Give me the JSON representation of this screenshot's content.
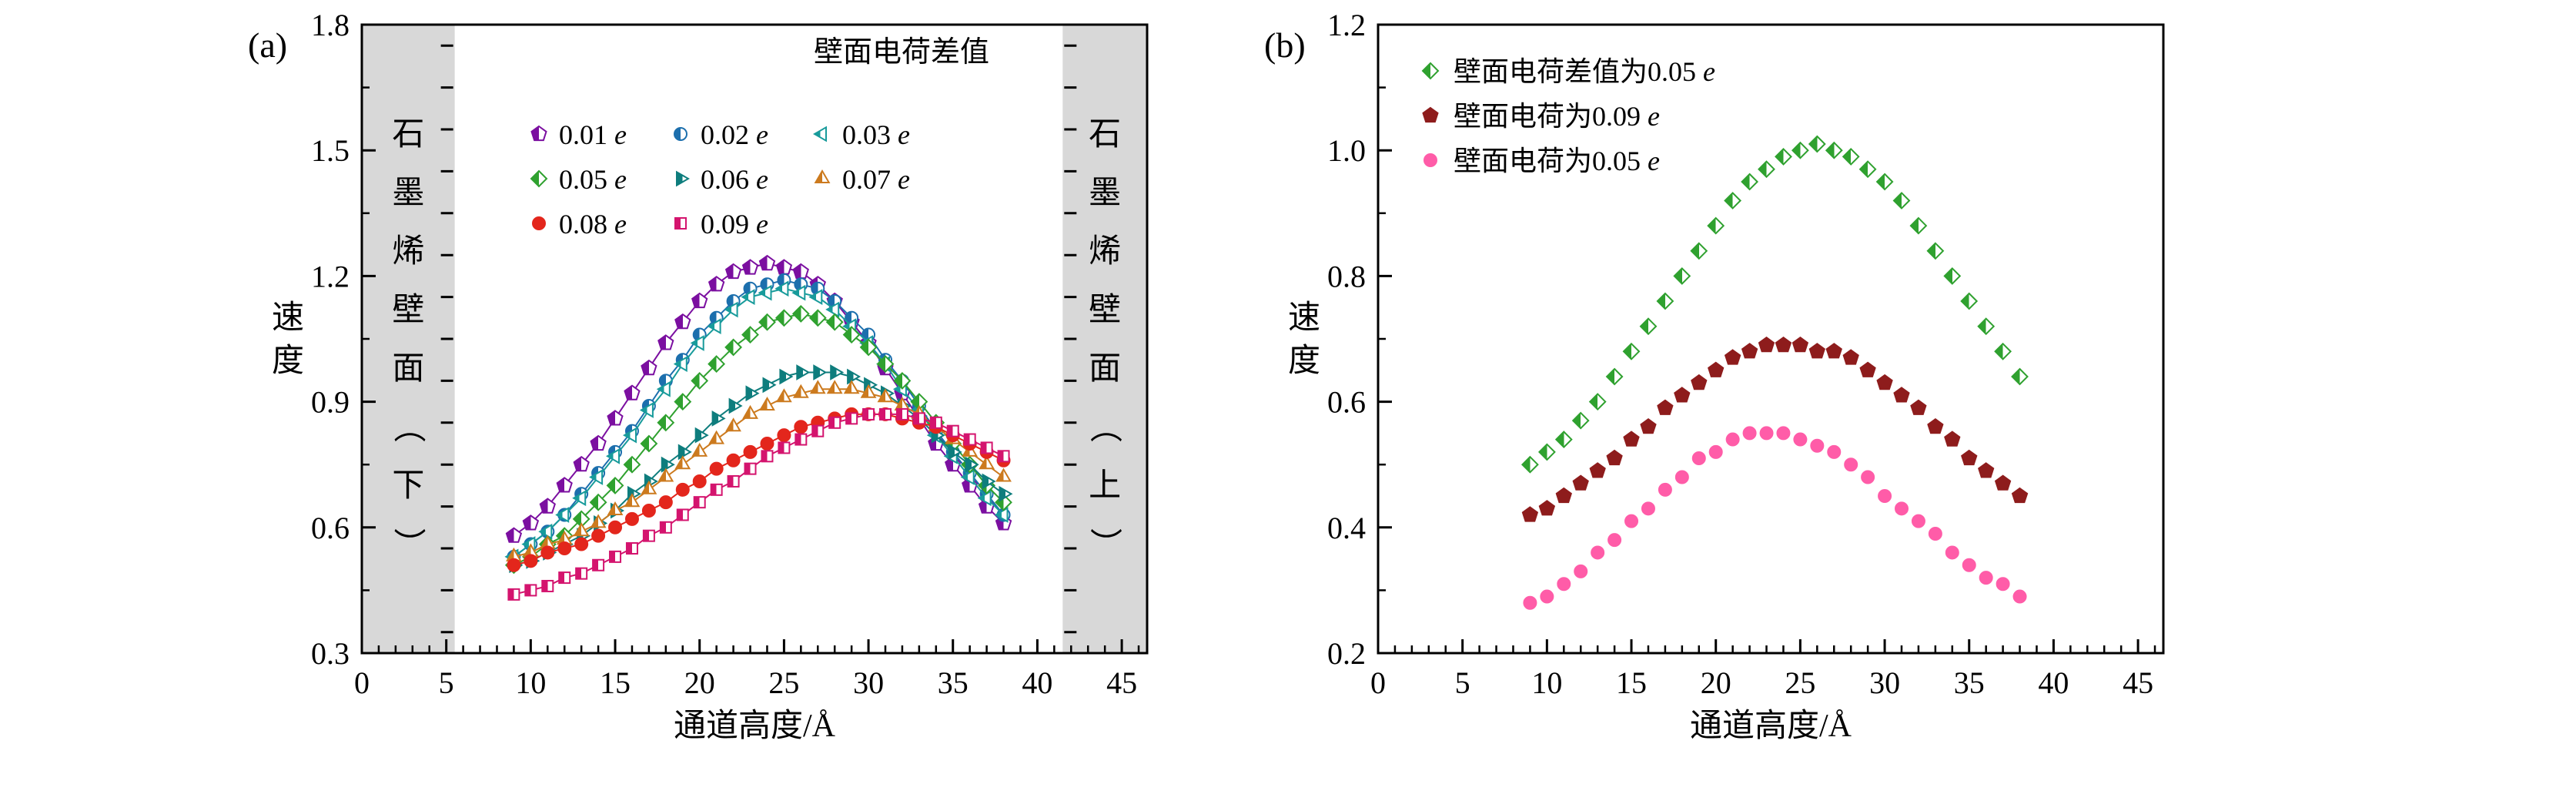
{
  "style": {
    "background": "#ffffff",
    "axis_color": "#000000",
    "band_fill": "#d8d8d8"
  },
  "chart_data": [
    {
      "panel": "(a)",
      "type": "scatter",
      "xlabel": "通道高度/Å",
      "ylabel": "速度",
      "xlim": [
        0,
        46.5
      ],
      "ylim": [
        0.3,
        1.8
      ],
      "x_ticks": [
        0,
        5,
        10,
        15,
        20,
        25,
        30,
        35,
        40,
        45
      ],
      "y_ticks": [
        0.3,
        0.6,
        0.9,
        1.2,
        1.5,
        1.8
      ],
      "grid": false,
      "legend_title": "壁面电荷差值",
      "legend_position": "top-center-grid",
      "connect_points": true,
      "wall_bands": [
        {
          "label": "石墨烯壁面（下）",
          "x_from": 0,
          "x_to": 5.5
        },
        {
          "label": "石墨烯壁面（上）",
          "x_from": 41.5,
          "x_to": 46.5
        }
      ],
      "x": [
        9,
        10,
        11,
        12,
        13,
        14,
        15,
        16,
        17,
        18,
        19,
        20,
        21,
        22,
        23,
        24,
        25,
        26,
        27,
        28,
        29,
        30,
        31,
        32,
        33,
        34,
        35,
        36,
        37,
        38
      ],
      "series": [
        {
          "name": "0.01 e",
          "marker": "pentagon",
          "color": "#7b0fa0",
          "half_filled": true,
          "values": [
            0.58,
            0.61,
            0.65,
            0.7,
            0.75,
            0.8,
            0.86,
            0.92,
            0.98,
            1.04,
            1.09,
            1.14,
            1.18,
            1.21,
            1.22,
            1.23,
            1.22,
            1.21,
            1.18,
            1.14,
            1.09,
            1.04,
            0.98,
            0.92,
            0.86,
            0.8,
            0.75,
            0.7,
            0.65,
            0.61
          ]
        },
        {
          "name": "0.02 e",
          "marker": "circle",
          "color": "#1c6fad",
          "half_filled": true,
          "values": [
            0.53,
            0.56,
            0.59,
            0.63,
            0.68,
            0.73,
            0.78,
            0.83,
            0.89,
            0.95,
            1.0,
            1.06,
            1.1,
            1.14,
            1.17,
            1.18,
            1.19,
            1.18,
            1.17,
            1.14,
            1.1,
            1.06,
            1.0,
            0.95,
            0.89,
            0.83,
            0.78,
            0.73,
            0.68,
            0.63
          ]
        },
        {
          "name": "0.03 e",
          "marker": "triangle-left",
          "color": "#189b9b",
          "half_filled": true,
          "values": [
            0.53,
            0.56,
            0.59,
            0.63,
            0.67,
            0.72,
            0.77,
            0.82,
            0.88,
            0.93,
            0.99,
            1.04,
            1.08,
            1.12,
            1.15,
            1.16,
            1.17,
            1.16,
            1.15,
            1.12,
            1.08,
            1.04,
            0.99,
            0.93,
            0.88,
            0.82,
            0.77,
            0.72,
            0.67,
            0.63
          ]
        },
        {
          "name": "0.05 e",
          "marker": "diamond",
          "color": "#2fa12f",
          "half_filled": true,
          "values": [
            0.51,
            0.53,
            0.56,
            0.58,
            0.62,
            0.66,
            0.7,
            0.75,
            0.8,
            0.85,
            0.9,
            0.95,
            0.99,
            1.03,
            1.06,
            1.09,
            1.1,
            1.11,
            1.1,
            1.09,
            1.06,
            1.03,
            0.99,
            0.95,
            0.9,
            0.85,
            0.8,
            0.75,
            0.7,
            0.66
          ]
        },
        {
          "name": "0.06 e",
          "marker": "triangle-right",
          "color": "#0e7d7d",
          "half_filled": true,
          "values": [
            0.51,
            0.52,
            0.54,
            0.56,
            0.58,
            0.61,
            0.64,
            0.68,
            0.71,
            0.75,
            0.78,
            0.82,
            0.86,
            0.89,
            0.92,
            0.94,
            0.96,
            0.97,
            0.97,
            0.97,
            0.96,
            0.94,
            0.92,
            0.89,
            0.86,
            0.82,
            0.78,
            0.75,
            0.71,
            0.68
          ]
        },
        {
          "name": "0.07 e",
          "marker": "triangle-up",
          "color": "#cc7a1e",
          "half_filled": true,
          "values": [
            0.53,
            0.54,
            0.56,
            0.57,
            0.59,
            0.61,
            0.64,
            0.66,
            0.69,
            0.72,
            0.75,
            0.78,
            0.81,
            0.84,
            0.87,
            0.89,
            0.91,
            0.92,
            0.93,
            0.93,
            0.93,
            0.92,
            0.91,
            0.89,
            0.87,
            0.84,
            0.81,
            0.78,
            0.75,
            0.72
          ]
        },
        {
          "name": "0.08 e",
          "marker": "circle",
          "color": "#e3261c",
          "half_filled": false,
          "values": [
            0.51,
            0.52,
            0.54,
            0.55,
            0.56,
            0.58,
            0.6,
            0.62,
            0.64,
            0.66,
            0.69,
            0.71,
            0.74,
            0.76,
            0.78,
            0.8,
            0.82,
            0.84,
            0.85,
            0.86,
            0.87,
            0.87,
            0.87,
            0.86,
            0.85,
            0.84,
            0.82,
            0.8,
            0.78,
            0.76
          ]
        },
        {
          "name": "0.09 e",
          "marker": "square",
          "color": "#d4146e",
          "half_filled": true,
          "values": [
            0.44,
            0.45,
            0.46,
            0.48,
            0.49,
            0.51,
            0.53,
            0.55,
            0.58,
            0.6,
            0.63,
            0.66,
            0.69,
            0.71,
            0.74,
            0.77,
            0.79,
            0.81,
            0.83,
            0.85,
            0.86,
            0.87,
            0.87,
            0.87,
            0.86,
            0.85,
            0.83,
            0.81,
            0.79,
            0.77
          ]
        }
      ]
    },
    {
      "panel": "(b)",
      "type": "scatter",
      "xlabel": "通道高度/Å",
      "ylabel": "速度",
      "xlim": [
        0,
        46.5
      ],
      "ylim": [
        0.2,
        1.2
      ],
      "x_ticks": [
        0,
        5,
        10,
        15,
        20,
        25,
        30,
        35,
        40,
        45
      ],
      "y_ticks": [
        0.2,
        0.4,
        0.6,
        0.8,
        1.0,
        1.2
      ],
      "grid": false,
      "legend_title": "",
      "legend_position": "top-left-list",
      "connect_points": false,
      "wall_bands": [],
      "x": [
        9,
        10,
        11,
        12,
        13,
        14,
        15,
        16,
        17,
        18,
        19,
        20,
        21,
        22,
        23,
        24,
        25,
        26,
        27,
        28,
        29,
        30,
        31,
        32,
        33,
        34,
        35,
        36,
        37,
        38
      ],
      "series": [
        {
          "name": "壁面电荷差值为0.05 e",
          "marker": "diamond",
          "color": "#2fa12f",
          "half_filled": true,
          "values": [
            0.5,
            0.52,
            0.54,
            0.57,
            0.6,
            0.64,
            0.68,
            0.72,
            0.76,
            0.8,
            0.84,
            0.88,
            0.92,
            0.95,
            0.97,
            0.99,
            1.0,
            1.01,
            1.0,
            0.99,
            0.97,
            0.95,
            0.92,
            0.88,
            0.84,
            0.8,
            0.76,
            0.72,
            0.68,
            0.64
          ]
        },
        {
          "name": "壁面电荷为0.09 e",
          "marker": "pentagon",
          "color": "#8e1c1c",
          "half_filled": false,
          "values": [
            0.42,
            0.43,
            0.45,
            0.47,
            0.49,
            0.51,
            0.54,
            0.56,
            0.59,
            0.61,
            0.63,
            0.65,
            0.67,
            0.68,
            0.69,
            0.69,
            0.69,
            0.68,
            0.68,
            0.67,
            0.65,
            0.63,
            0.61,
            0.59,
            0.56,
            0.54,
            0.51,
            0.49,
            0.47,
            0.45
          ]
        },
        {
          "name": "壁面电荷为0.05 e",
          "marker": "circle",
          "color": "#ff5ca8",
          "half_filled": false,
          "values": [
            0.28,
            0.29,
            0.31,
            0.33,
            0.36,
            0.38,
            0.41,
            0.43,
            0.46,
            0.48,
            0.51,
            0.52,
            0.54,
            0.55,
            0.55,
            0.55,
            0.54,
            0.53,
            0.52,
            0.5,
            0.48,
            0.45,
            0.43,
            0.41,
            0.39,
            0.36,
            0.34,
            0.32,
            0.31,
            0.29
          ]
        }
      ]
    }
  ]
}
